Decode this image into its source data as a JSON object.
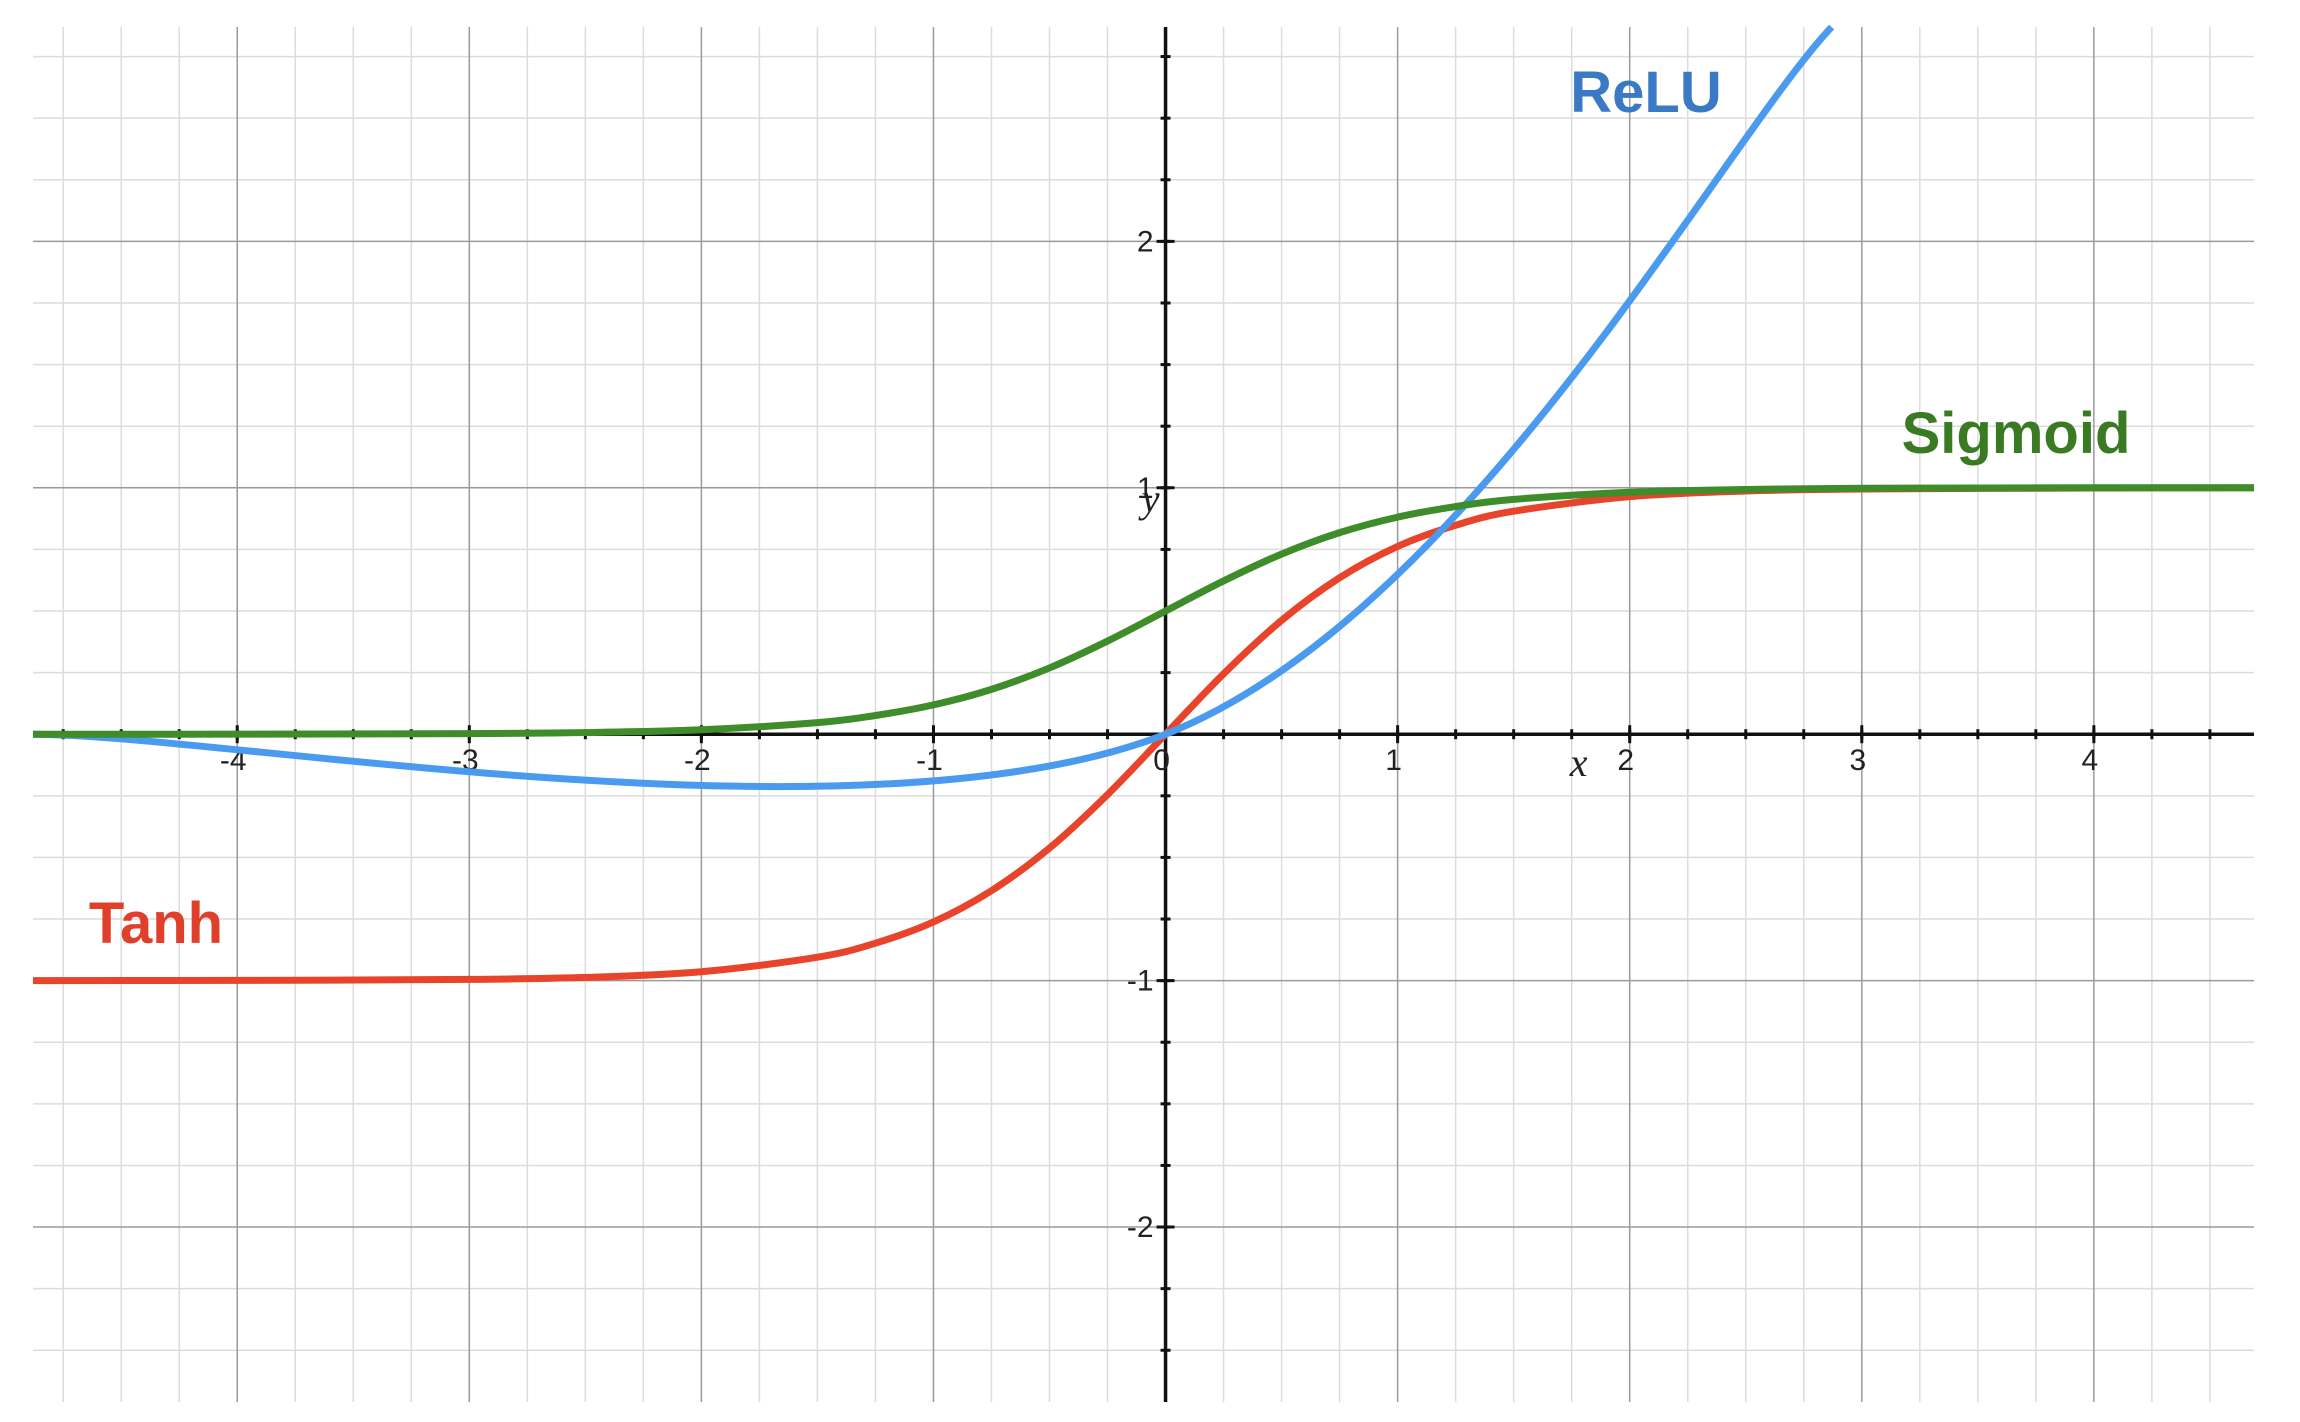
{
  "chart_data": {
    "type": "line",
    "x_label": "x",
    "y_label": "y",
    "xlim": [
      -4.88,
      4.69
    ],
    "ylim": [
      -2.71,
      2.87
    ],
    "xticks": [
      -4,
      -3,
      -2,
      -1,
      0,
      1,
      2,
      3,
      4
    ],
    "yticks": [
      -2,
      -1,
      1,
      2
    ],
    "grid": true,
    "series": [
      {
        "name": "Tanh",
        "color": "#e8442c",
        "label_color": "#e0402a",
        "x": [
          -4.88,
          -4,
          -3,
          -2.5,
          -2,
          -1.5,
          -1.25,
          -1,
          -0.75,
          -0.5,
          -0.25,
          0,
          0.25,
          0.5,
          0.75,
          1,
          1.25,
          1.5,
          2,
          2.5,
          3,
          4,
          4.69
        ],
        "values": [
          -1.0,
          -0.999,
          -0.995,
          -0.987,
          -0.964,
          -0.905,
          -0.848,
          -0.762,
          -0.635,
          -0.462,
          -0.245,
          0,
          0.245,
          0.462,
          0.635,
          0.762,
          0.848,
          0.905,
          0.964,
          0.987,
          0.995,
          0.999,
          1.0
        ]
      },
      {
        "name": "ReLU",
        "color": "#4a9bf0",
        "label_color": "#3a7ac4",
        "x": [
          -4.88,
          0,
          2.87
        ],
        "values": [
          0,
          0,
          2.87
        ]
      },
      {
        "name": "Sigmoid",
        "color": "#3f8c2a",
        "label_color": "#3a7a22",
        "x": [
          -4.88,
          -4,
          -3,
          -2.5,
          -2,
          -1.5,
          -1.25,
          -1,
          -0.75,
          -0.5,
          -0.25,
          0,
          0.25,
          0.5,
          0.75,
          1,
          1.25,
          1.5,
          2,
          2.5,
          3,
          4,
          4.69
        ],
        "values": [
          0.0,
          0.0003,
          0.0025,
          0.0067,
          0.018,
          0.047,
          0.076,
          0.119,
          0.182,
          0.269,
          0.378,
          0.5,
          0.622,
          0.731,
          0.818,
          0.881,
          0.924,
          0.953,
          0.982,
          0.993,
          0.998,
          1.0,
          1.0
        ]
      }
    ]
  }
}
